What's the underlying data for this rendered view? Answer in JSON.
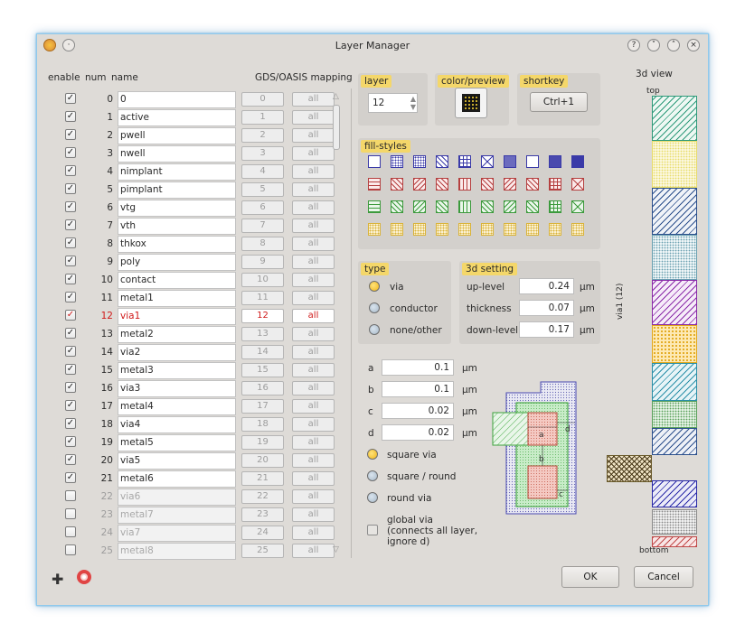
{
  "window": {
    "title": "Layer Manager"
  },
  "columns": {
    "enable": "enable",
    "num": "num",
    "name": "name",
    "mapping": "GDS/OASIS mapping"
  },
  "layers": [
    {
      "num": "0",
      "name": "0",
      "gds": "0",
      "all": "all",
      "enabled": true
    },
    {
      "num": "1",
      "name": "active",
      "gds": "1",
      "all": "all",
      "enabled": true
    },
    {
      "num": "2",
      "name": "pwell",
      "gds": "2",
      "all": "all",
      "enabled": true
    },
    {
      "num": "3",
      "name": "nwell",
      "gds": "3",
      "all": "all",
      "enabled": true
    },
    {
      "num": "4",
      "name": "nimplant",
      "gds": "4",
      "all": "all",
      "enabled": true
    },
    {
      "num": "5",
      "name": "pimplant",
      "gds": "5",
      "all": "all",
      "enabled": true
    },
    {
      "num": "6",
      "name": "vtg",
      "gds": "6",
      "all": "all",
      "enabled": true
    },
    {
      "num": "7",
      "name": "vth",
      "gds": "7",
      "all": "all",
      "enabled": true
    },
    {
      "num": "8",
      "name": "thkox",
      "gds": "8",
      "all": "all",
      "enabled": true
    },
    {
      "num": "9",
      "name": "poly",
      "gds": "9",
      "all": "all",
      "enabled": true
    },
    {
      "num": "10",
      "name": "contact",
      "gds": "10",
      "all": "all",
      "enabled": true
    },
    {
      "num": "11",
      "name": "metal1",
      "gds": "11",
      "all": "all",
      "enabled": true
    },
    {
      "num": "12",
      "name": "via1",
      "gds": "12",
      "all": "all",
      "enabled": true,
      "selected": true
    },
    {
      "num": "13",
      "name": "metal2",
      "gds": "13",
      "all": "all",
      "enabled": true
    },
    {
      "num": "14",
      "name": "via2",
      "gds": "14",
      "all": "all",
      "enabled": true
    },
    {
      "num": "15",
      "name": "metal3",
      "gds": "15",
      "all": "all",
      "enabled": true
    },
    {
      "num": "16",
      "name": "via3",
      "gds": "16",
      "all": "all",
      "enabled": true
    },
    {
      "num": "17",
      "name": "metal4",
      "gds": "17",
      "all": "all",
      "enabled": true
    },
    {
      "num": "18",
      "name": "via4",
      "gds": "18",
      "all": "all",
      "enabled": true
    },
    {
      "num": "19",
      "name": "metal5",
      "gds": "19",
      "all": "all",
      "enabled": true
    },
    {
      "num": "20",
      "name": "via5",
      "gds": "20",
      "all": "all",
      "enabled": true
    },
    {
      "num": "21",
      "name": "metal6",
      "gds": "21",
      "all": "all",
      "enabled": true
    },
    {
      "num": "22",
      "name": "via6",
      "gds": "22",
      "all": "all",
      "enabled": false
    },
    {
      "num": "23",
      "name": "metal7",
      "gds": "23",
      "all": "all",
      "enabled": false
    },
    {
      "num": "24",
      "name": "via7",
      "gds": "24",
      "all": "all",
      "enabled": false
    },
    {
      "num": "25",
      "name": "metal8",
      "gds": "25",
      "all": "all",
      "enabled": false
    }
  ],
  "layer_group": {
    "title": "layer",
    "value": "12"
  },
  "color_group": {
    "title": "color/preview"
  },
  "shortkey_group": {
    "title": "shortkey",
    "button": "Ctrl+1"
  },
  "fill_group": {
    "title": "fill-styles"
  },
  "type_group": {
    "title": "type",
    "options": [
      "via",
      "conductor",
      "none/other"
    ],
    "selected": 0
  },
  "setting3d": {
    "title": "3d setting",
    "rows": [
      {
        "label": "up-level",
        "value": "0.24",
        "unit": "µm"
      },
      {
        "label": "thickness",
        "value": "0.07",
        "unit": "µm"
      },
      {
        "label": "down-level",
        "value": "0.17",
        "unit": "µm"
      }
    ]
  },
  "params": [
    {
      "label": "a",
      "value": "0.1",
      "unit": "µm"
    },
    {
      "label": "b",
      "value": "0.1",
      "unit": "µm"
    },
    {
      "label": "c",
      "value": "0.02",
      "unit": "µm"
    },
    {
      "label": "d",
      "value": "0.02",
      "unit": "µm"
    }
  ],
  "via_shapes": {
    "options": [
      "square via",
      "square / round",
      "round via"
    ],
    "selected": 0
  },
  "global_via": {
    "line1": "global via",
    "line2": "(connects all layer,",
    "line3": "ignore d)"
  },
  "diagram_labels": {
    "a": "a",
    "b": "b",
    "c": "c",
    "d": "d"
  },
  "view3d": {
    "title": "3d view",
    "top": "top",
    "bottom": "bottom",
    "side_label": "via1 (12)"
  },
  "buttons": {
    "ok": "OK",
    "cancel": "Cancel"
  },
  "colors": {
    "accent": "#f4d76a",
    "selected_text": "#d01818",
    "window_border": "#8fc9ec"
  }
}
